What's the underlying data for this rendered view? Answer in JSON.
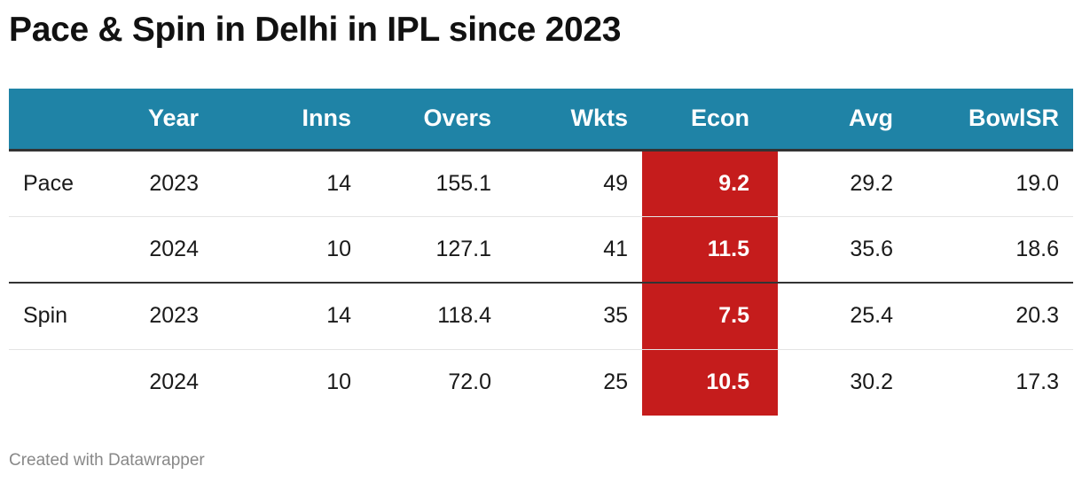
{
  "title": "Pace & Spin in Delhi in IPL since 2023",
  "footer": "Created with Datawrapper",
  "highlight_color": "#c51c1c",
  "header_color": "#1f83a6",
  "chart_data": {
    "type": "table",
    "columns": [
      "",
      "Year",
      "Inns",
      "Overs",
      "Wkts",
      "Econ",
      "Avg",
      "BowlSR"
    ],
    "rows": [
      [
        "Pace",
        "2023",
        "14",
        "155.1",
        "49",
        "9.2",
        "29.2",
        "19.0"
      ],
      [
        "",
        "2024",
        "10",
        "127.1",
        "41",
        "11.5",
        "35.6",
        "18.6"
      ],
      [
        "Spin",
        "2023",
        "14",
        "118.4",
        "35",
        "7.5",
        "25.4",
        "20.3"
      ],
      [
        "",
        "2024",
        "10",
        "72.0",
        "25",
        "10.5",
        "30.2",
        "17.3"
      ]
    ],
    "highlighted_column": "Econ"
  }
}
